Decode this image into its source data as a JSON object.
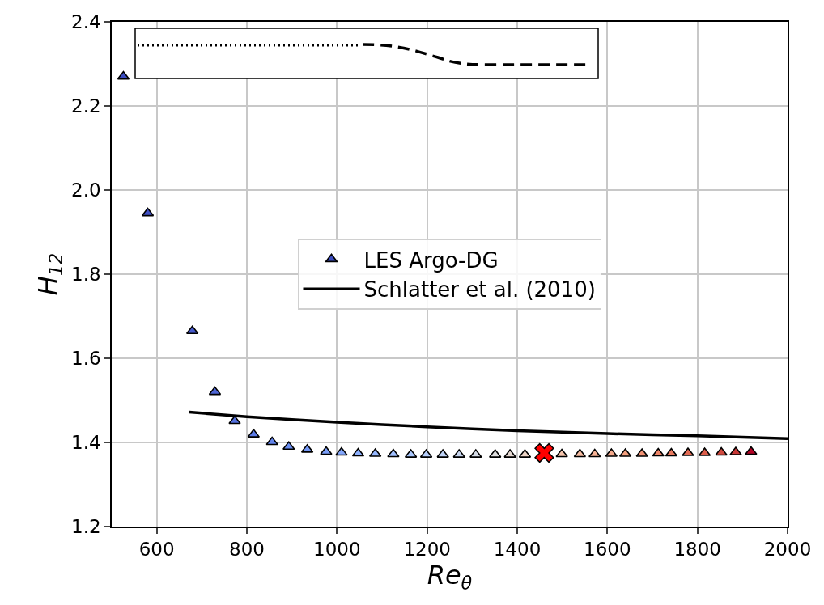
{
  "chart_data": {
    "type": "scatter",
    "xlabel": "Re$_{θ}$",
    "ylabel": "H$_{12}$",
    "xlim": [
      500,
      2000
    ],
    "xticks": [
      600,
      800,
      1000,
      1200,
      1400,
      1600,
      1800,
      2000
    ],
    "ylim": [
      1.2,
      2.4
    ],
    "yticks": [
      1.2,
      1.4,
      1.6,
      1.8,
      {
        "value": 2.0,
        "label": "2.0"
      },
      2.2,
      2.4
    ],
    "grid": true,
    "legend": "center",
    "marker": "triangle",
    "series": [
      {
        "name": "LES Argo-DG",
        "x": [
          526,
          580,
          679,
          729,
          773,
          815,
          856,
          893,
          934,
          976,
          1010,
          1047,
          1085,
          1125,
          1164,
          1198,
          1235,
          1271,
          1308,
          1351,
          1384,
          1417,
          1499,
          1539,
          1572,
          1609,
          1640,
          1677,
          1713,
          1742,
          1779,
          1816,
          1853,
          1885,
          1919
        ],
        "values": [
          2.27,
          1.945,
          1.665,
          1.52,
          1.451,
          1.419,
          1.401,
          1.39,
          1.383,
          1.378,
          1.376,
          1.374,
          1.373,
          1.372,
          1.371,
          1.371,
          1.371,
          1.371,
          1.371,
          1.371,
          1.371,
          1.371,
          1.372,
          1.372,
          1.372,
          1.373,
          1.373,
          1.373,
          1.374,
          1.374,
          1.375,
          1.375,
          1.376,
          1.377,
          1.378
        ],
        "colors": [
          "#3b4cc0",
          "#4050c5",
          "#465acd",
          "#4e66d6",
          "#5571df",
          "#5c7be6",
          "#6384eb",
          "#6b8ef1",
          "#7397f5",
          "#7b9ff9",
          "#84a7fc",
          "#8db0fe",
          "#97b8ff",
          "#a1c0ff",
          "#abc8fd",
          "#b5cdfa",
          "#bfd3f6",
          "#c9d7f0",
          "#d4dbe6",
          "#dddcdc",
          "#e5d8d1",
          "#ecd3c5",
          "#f5c4ac",
          "#f7bca1",
          "#f7b396",
          "#f6a98b",
          "#f4a07f",
          "#f29274",
          "#ee8669",
          "#e97a5f",
          "#e36c55",
          "#dc5d4a",
          "#d24b40",
          "#c83836",
          "#b40426"
        ]
      },
      {
        "name": "Schlatter et al. (2010)",
        "type": "line",
        "marker": "none",
        "line_style": "solid",
        "color": "#000000",
        "x": [
          672,
          800,
          1000,
          1200,
          1400,
          1600,
          1800,
          2000
        ],
        "values": [
          1.472,
          1.461,
          1.448,
          1.437,
          1.428,
          1.421,
          1.416,
          1.409
        ]
      },
      {
        "type": "scatter",
        "marker": "cross",
        "color": "#ff0000",
        "x": [
          1460
        ],
        "values": [
          1.375
        ]
      }
    ]
  }
}
